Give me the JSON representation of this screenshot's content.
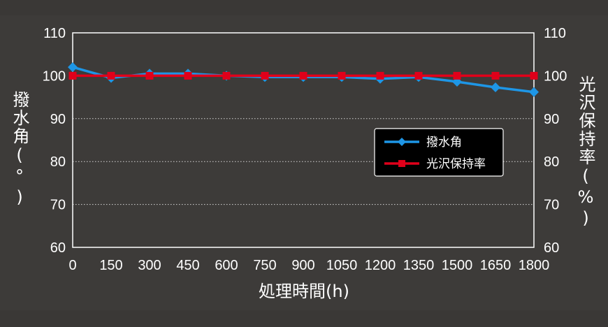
{
  "chart_data": {
    "type": "line",
    "x": [
      0,
      150,
      300,
      450,
      600,
      750,
      900,
      1050,
      1200,
      1350,
      1500,
      1650,
      1800
    ],
    "xlabel": "処理時間(h)",
    "ylabel_left": "撥水角(°)",
    "ylabel_right": "光沢保持率(%)",
    "ylim": [
      60,
      110
    ],
    "y2lim": [
      60,
      110
    ],
    "yticks": [
      60,
      70,
      80,
      90,
      100,
      110
    ],
    "grid": "dotted horizontal at 80, 90; 70 dotted",
    "legend_position": "center-right",
    "series": [
      {
        "name": "撥水角",
        "axis": "left",
        "color": "#1e96e6",
        "marker": "diamond",
        "values": [
          102,
          99.5,
          100.5,
          100.5,
          100,
          99.7,
          99.7,
          99.7,
          99.3,
          99.7,
          98.6,
          97.3,
          96.2
        ]
      },
      {
        "name": "光沢保持率",
        "axis": "right",
        "color": "#e0001a",
        "marker": "square",
        "values": [
          100,
          100,
          100,
          100,
          100,
          100,
          100,
          100,
          100,
          100,
          100,
          100,
          100
        ]
      }
    ]
  }
}
